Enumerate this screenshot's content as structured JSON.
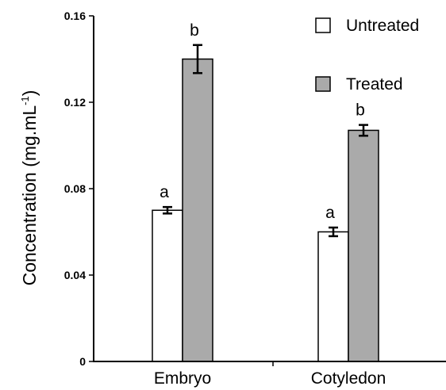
{
  "chart_data": {
    "type": "bar",
    "title": "",
    "xlabel": "",
    "ylabel": "Concentration (mg.mL",
    "ylabel_superscript": "-1",
    "ylabel_close": ")",
    "categories": [
      "Embryo",
      "Cotyledon"
    ],
    "ylim": [
      0,
      0.16
    ],
    "yticks": [
      0,
      0.04,
      0.08,
      0.12,
      0.16
    ],
    "ytick_labels": [
      "0",
      "0.04",
      "0.08",
      "0.12",
      "0.16"
    ],
    "grid": false,
    "legend_position": "top-right",
    "series": [
      {
        "name": "Untreated",
        "color": "#ffffff",
        "values": [
          0.07,
          0.06
        ],
        "errors": [
          0.0015,
          0.002
        ],
        "labels": [
          "a",
          "a"
        ]
      },
      {
        "name": "Treated",
        "color": "#aaaaaa",
        "values": [
          0.14,
          0.107
        ],
        "errors": [
          0.0065,
          0.0025
        ],
        "labels": [
          "b",
          "b"
        ]
      }
    ]
  }
}
